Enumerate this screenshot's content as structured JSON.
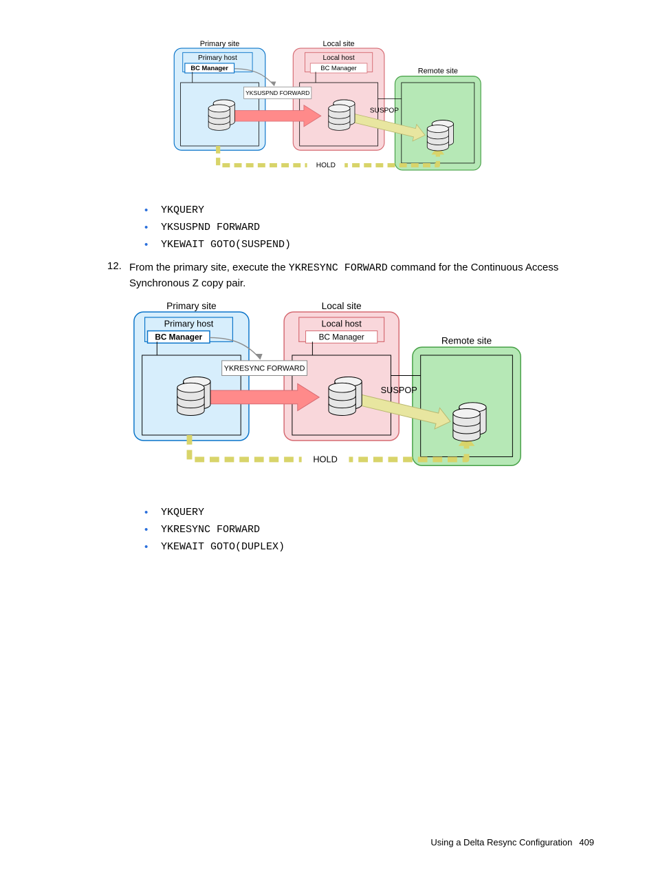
{
  "diagram1": {
    "scale": 0.78,
    "primary_site": "Primary site",
    "primary_host": "Primary host",
    "bc_primary": "BC Manager",
    "local_site": "Local site",
    "local_host": "Local host",
    "bc_local": "BC Manager",
    "remote_site": "Remote site",
    "cmd_arrow": "YKSUSPND FORWARD",
    "suspop": "SUSPOP",
    "hold": "HOLD",
    "colors": {
      "primary_fill": "#d7eefc",
      "primary_stroke": "#0a74c9",
      "local_fill": "#f9d7db",
      "local_stroke": "#d56a72",
      "remote_fill": "#b6e8b6",
      "remote_stroke": "#46a046",
      "cmd_box_fill": "#ffffff",
      "cmd_box_stroke": "#888888",
      "big_arrow_fill": "#ff8a8a",
      "big_arrow_stroke": "#d56a72",
      "yellow_arrow_fill": "#e8e6a0",
      "yellow_arrow_stroke": "#b9b76e",
      "dash_stroke": "#d8d46a",
      "db_fill": "#e6e6e6",
      "db_stroke": "#000000",
      "grey_arrow": "#8c8c8c"
    }
  },
  "list1": {
    "item1": "YKQUERY",
    "item2": "YKSUSPND FORWARD",
    "item3": "YKEWAIT GOTO(SUSPEND)"
  },
  "step12": {
    "num": "12.",
    "part1": "From the primary site, execute the ",
    "cmd": "YKRESYNC FORWARD",
    "part2": " command for the Continuous Access Synchronous Z copy pair."
  },
  "diagram2": {
    "scale": 1.0,
    "primary_site": "Primary site",
    "primary_host": "Primary host",
    "bc_primary": "BC Manager",
    "local_site": "Local site",
    "local_host": "Local host",
    "bc_local": "BC Manager",
    "remote_site": "Remote site",
    "cmd_arrow": "YKRESYNC FORWARD",
    "suspop": "SUSPOP",
    "hold": "HOLD",
    "colors": {
      "primary_fill": "#d7eefc",
      "primary_stroke": "#0a74c9",
      "local_fill": "#f9d7db",
      "local_stroke": "#d56a72",
      "remote_fill": "#b6e8b6",
      "remote_stroke": "#46a046",
      "cmd_box_fill": "#ffffff",
      "cmd_box_stroke": "#888888",
      "big_arrow_fill": "#ff8a8a",
      "big_arrow_stroke": "#d56a72",
      "yellow_arrow_fill": "#e8e6a0",
      "yellow_arrow_stroke": "#b9b76e",
      "dash_stroke": "#d8d46a",
      "db_fill": "#e6e6e6",
      "db_stroke": "#000000",
      "grey_arrow": "#8c8c8c"
    }
  },
  "list2": {
    "item1": "YKQUERY",
    "item2": "YKRESYNC FORWARD",
    "item3": "YKEWAIT GOTO(DUPLEX)"
  },
  "footer": {
    "title": "Using a Delta Resync Configuration",
    "page": "409"
  }
}
